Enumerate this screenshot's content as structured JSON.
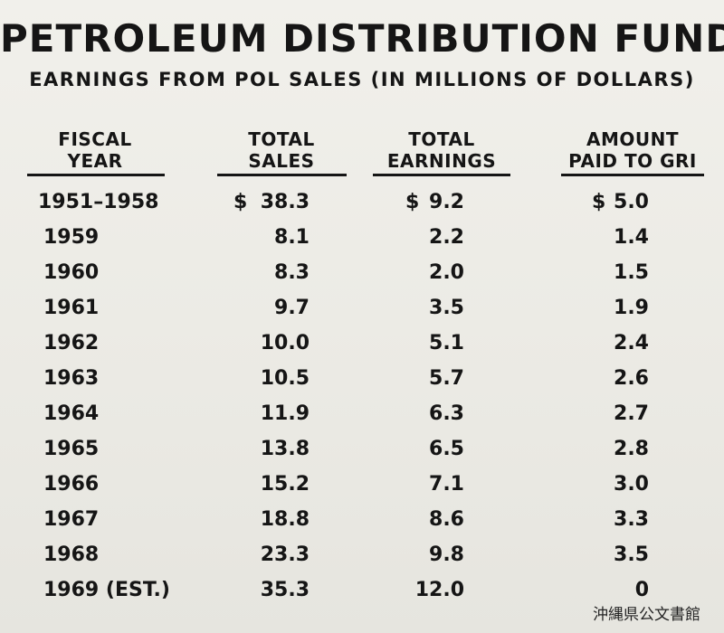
{
  "title": "PETROLEUM DISTRIBUTION FUND",
  "subtitle": "EARNINGS FROM POL SALES (IN MILLIONS OF DOLLARS)",
  "headers": [
    {
      "line1": "FISCAL",
      "line2": "YEAR"
    },
    {
      "line1": "TOTAL",
      "line2": "SALES"
    },
    {
      "line1": "TOTAL",
      "line2": "EARNINGS"
    },
    {
      "line1": "AMOUNT",
      "line2": "PAID TO GRI"
    }
  ],
  "currency_symbol": "$",
  "rows": [
    {
      "year": "1951–1958",
      "sales": "38.3",
      "earnings": "9.2",
      "paid": "5.0"
    },
    {
      "year": "1959",
      "sales": "8.1",
      "earnings": "2.2",
      "paid": "1.4"
    },
    {
      "year": "1960",
      "sales": "8.3",
      "earnings": "2.0",
      "paid": "1.5"
    },
    {
      "year": "1961",
      "sales": "9.7",
      "earnings": "3.5",
      "paid": "1.9"
    },
    {
      "year": "1962",
      "sales": "10.0",
      "earnings": "5.1",
      "paid": "2.4"
    },
    {
      "year": "1963",
      "sales": "10.5",
      "earnings": "5.7",
      "paid": "2.6"
    },
    {
      "year": "1964",
      "sales": "11.9",
      "earnings": "6.3",
      "paid": "2.7"
    },
    {
      "year": "1965",
      "sales": "13.8",
      "earnings": "6.5",
      "paid": "2.8"
    },
    {
      "year": "1966",
      "sales": "15.2",
      "earnings": "7.1",
      "paid": "3.0"
    },
    {
      "year": "1967",
      "sales": "18.8",
      "earnings": "8.6",
      "paid": "3.3"
    },
    {
      "year": "1968",
      "sales": "23.3",
      "earnings": "9.8",
      "paid": "3.5"
    },
    {
      "year": "1969 (EST.)",
      "sales": "35.3",
      "earnings": "12.0",
      "paid": "0"
    }
  ],
  "archive_stamp": "沖縄県公文書館"
}
